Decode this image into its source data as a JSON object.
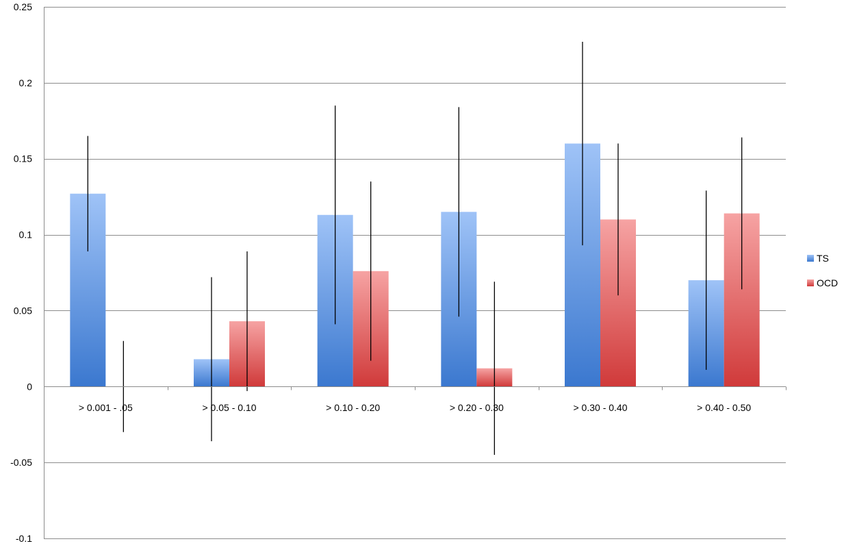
{
  "chart_data": {
    "type": "bar",
    "title": "",
    "xlabel": "",
    "ylabel": "",
    "categories": [
      "> 0.001 - .05",
      "> 0.05 - 0.10",
      "> 0.10 - 0.20",
      "> 0.20 - 0.30",
      "> 0.30 - 0.40",
      "> 0.40 - 0.50"
    ],
    "ylim": [
      -0.1,
      0.25
    ],
    "yticks": [
      -0.1,
      -0.05,
      0,
      0.05,
      0.1,
      0.15,
      0.2,
      0.25
    ],
    "ytick_labels": [
      "-0.1",
      "-0.05",
      "0",
      "0.05",
      "0.1",
      "0.15",
      "0.2",
      "0.25"
    ],
    "grid": true,
    "legend_position": "right",
    "series": [
      {
        "name": "TS",
        "color": "#4a86d4",
        "values": [
          0.127,
          0.018,
          0.113,
          0.115,
          0.16,
          0.07
        ],
        "error_low": [
          0.089,
          -0.036,
          0.041,
          0.046,
          0.093,
          0.011
        ],
        "error_high": [
          0.165,
          0.072,
          0.185,
          0.184,
          0.227,
          0.129
        ]
      },
      {
        "name": "OCD",
        "color": "#d94040",
        "values": [
          0.0,
          0.043,
          0.076,
          0.012,
          0.11,
          0.114
        ],
        "error_low": [
          -0.03,
          -0.003,
          0.017,
          -0.045,
          0.06,
          0.064
        ],
        "error_high": [
          0.03,
          0.089,
          0.135,
          0.069,
          0.16,
          0.164
        ]
      }
    ]
  }
}
